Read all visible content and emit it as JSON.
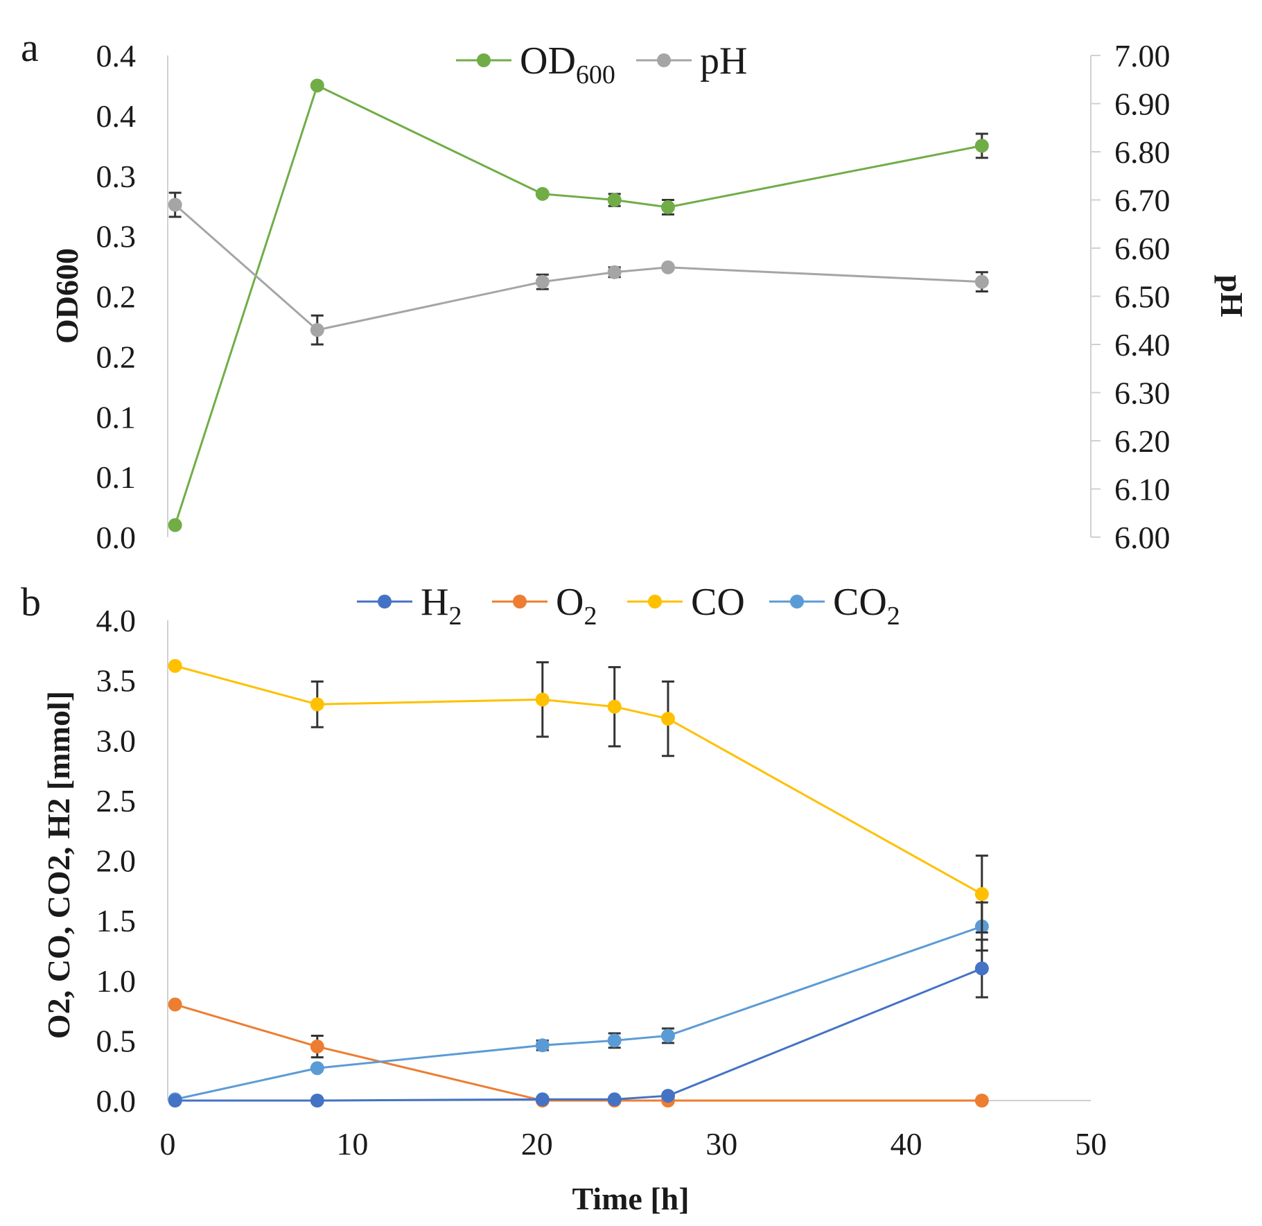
{
  "chart_data": [
    {
      "panel_label": "a",
      "type": "line",
      "title": "",
      "xlabel": "",
      "ylabel": "OD600",
      "y2label": "pH",
      "xlim": [
        0,
        50
      ],
      "ylim": [
        0,
        0.4
      ],
      "y2lim": [
        6.0,
        7.0
      ],
      "y_tick_labels": [
        "0.0",
        "0.1",
        "0.1",
        "0.2",
        "0.2",
        "0.3",
        "0.3",
        "0.4",
        "0.4"
      ],
      "y2_tick_labels": [
        "6.00",
        "6.10",
        "6.20",
        "6.30",
        "6.40",
        "6.50",
        "6.60",
        "6.70",
        "6.80",
        "6.90",
        "7.00"
      ],
      "grid": false,
      "legend_position": "top-center",
      "series": [
        {
          "name": "OD",
          "name_sub": "600",
          "axis": "left",
          "color": "#70ad47",
          "x": [
            0.4,
            8.1,
            20.3,
            24.2,
            27.1,
            44.1
          ],
          "y": [
            0.01,
            0.375,
            0.285,
            0.28,
            0.274,
            0.325
          ],
          "yerr": [
            0.0,
            0.0,
            0.0,
            0.005,
            0.006,
            0.01
          ]
        },
        {
          "name": "pH",
          "name_sub": "",
          "axis": "right",
          "color": "#a5a5a5",
          "x": [
            0.4,
            8.1,
            20.3,
            24.2,
            27.1,
            44.1
          ],
          "y": [
            6.69,
            6.43,
            6.53,
            6.55,
            6.56,
            6.53
          ],
          "yerr": [
            0.025,
            0.03,
            0.015,
            0.01,
            0.0,
            0.02
          ]
        }
      ]
    },
    {
      "panel_label": "b",
      "type": "line",
      "title": "",
      "xlabel": "Time  [h]",
      "ylabel": "O2, CO, CO2, H2  [mmol]",
      "xlim": [
        0,
        50
      ],
      "ylim": [
        0,
        4.0
      ],
      "x_tick_labels": [
        "0",
        "10",
        "20",
        "30",
        "40",
        "50"
      ],
      "y_tick_labels": [
        "0.0",
        "0.5",
        "1.0",
        "1.5",
        "2.0",
        "2.5",
        "3.0",
        "3.5",
        "4.0"
      ],
      "grid": false,
      "legend_position": "top-center",
      "series": [
        {
          "name": "H",
          "name_sub": "2",
          "color": "#4472c4",
          "x": [
            0.4,
            8.1,
            20.3,
            24.2,
            27.1,
            44.1
          ],
          "y": [
            0.0,
            0.0,
            0.01,
            0.01,
            0.04,
            1.1
          ],
          "yerr": [
            0,
            0,
            0,
            0,
            0,
            0.24
          ]
        },
        {
          "name": "O",
          "name_sub": "2",
          "color": "#ed7d31",
          "x": [
            0.4,
            8.1,
            20.3,
            24.2,
            27.1,
            44.1
          ],
          "y": [
            0.8,
            0.45,
            0.0,
            0.0,
            0.0,
            0.0
          ],
          "yerr": [
            0,
            0.09,
            0,
            0,
            0,
            0
          ]
        },
        {
          "name": "CO",
          "name_sub": "",
          "color": "#ffc000",
          "x": [
            0.4,
            8.1,
            20.3,
            24.2,
            27.1,
            44.1
          ],
          "y": [
            3.62,
            3.3,
            3.34,
            3.28,
            3.18,
            1.72
          ],
          "yerr": [
            0,
            0.19,
            0.31,
            0.33,
            0.31,
            0.32
          ]
        },
        {
          "name": "CO",
          "name_sub": "2",
          "color": "#5b9bd5",
          "x": [
            0.4,
            8.1,
            20.3,
            24.2,
            27.1,
            44.1
          ],
          "y": [
            0.01,
            0.27,
            0.46,
            0.5,
            0.54,
            1.45
          ],
          "yerr": [
            0,
            0,
            0.04,
            0.06,
            0.06,
            0.2
          ]
        }
      ]
    }
  ]
}
